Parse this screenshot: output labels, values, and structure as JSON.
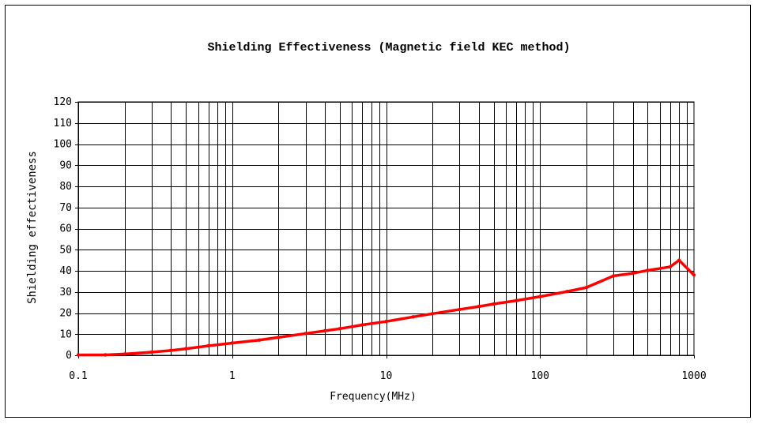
{
  "chart_data": {
    "type": "line",
    "title": "Shielding Effectiveness (Magnetic field KEC method)",
    "xlabel": "Frequency(MHz)",
    "ylabel": "Shielding effectiveness",
    "x_scale": "log",
    "xlim": [
      0.1,
      1000
    ],
    "ylim": [
      0,
      120
    ],
    "x_ticks": [
      0.1,
      1,
      10,
      100,
      1000
    ],
    "x_tick_labels": [
      "0.1",
      "1",
      "10",
      "100",
      "1000"
    ],
    "y_ticks": [
      0,
      10,
      20,
      30,
      40,
      50,
      60,
      70,
      80,
      90,
      100,
      110,
      120
    ],
    "y_tick_labels": [
      "0",
      "10",
      "20",
      "30",
      "40",
      "50",
      "60",
      "70",
      "80",
      "90",
      "100",
      "110",
      "120"
    ],
    "grid": true,
    "legend": "none",
    "series": [
      {
        "color": "#ff0000",
        "x": [
          0.1,
          0.15,
          0.2,
          0.3,
          0.4,
          0.5,
          0.7,
          1,
          1.5,
          2,
          3,
          4,
          5,
          7,
          10,
          15,
          20,
          30,
          40,
          50,
          70,
          100,
          150,
          200,
          300,
          400,
          500,
          700,
          800,
          1000
        ],
        "values": [
          0.2,
          0.2,
          0.6,
          1.5,
          2.3,
          3.1,
          4.5,
          5.8,
          7.2,
          8.5,
          10.3,
          11.6,
          12.6,
          14.4,
          16.0,
          18.2,
          19.7,
          21.7,
          23.1,
          24.3,
          25.9,
          27.8,
          30.2,
          32.1,
          37.6,
          38.8,
          40.2,
          41.9,
          45.0,
          38.0
        ]
      }
    ]
  }
}
